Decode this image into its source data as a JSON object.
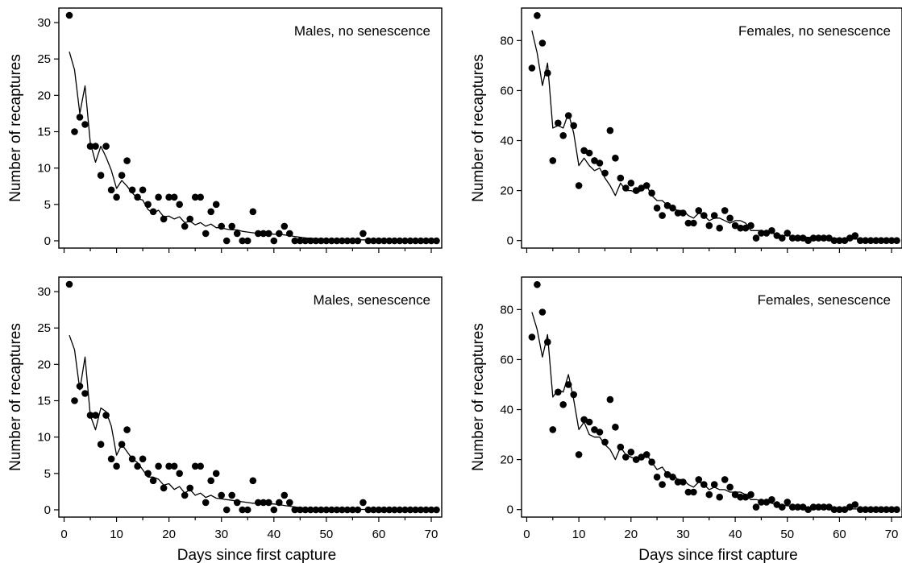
{
  "chart_data": [
    {
      "type": "scatter",
      "title": "",
      "annotation": "Males, no senescence",
      "xlabel": "",
      "ylabel": "Number of recaptures",
      "xlim": [
        -1,
        72
      ],
      "ylim": [
        -1,
        32
      ],
      "xticks": [
        0,
        10,
        20,
        30,
        40,
        50,
        60,
        70
      ],
      "yticks": [
        0,
        5,
        10,
        15,
        20,
        25,
        30
      ],
      "show_x_tick_labels": false,
      "grid": false,
      "observed": {
        "x": [
          1,
          2,
          3,
          4,
          5,
          6,
          7,
          8,
          9,
          10,
          11,
          12,
          13,
          14,
          15,
          16,
          17,
          18,
          19,
          20,
          21,
          22,
          23,
          24,
          25,
          26,
          27,
          28,
          29,
          30,
          31,
          32,
          33,
          34,
          35,
          36,
          37,
          38,
          39,
          40,
          41,
          42,
          43,
          44,
          45,
          46,
          47,
          48,
          49,
          50,
          51,
          52,
          53,
          54,
          55,
          56,
          57,
          58,
          59,
          60,
          61,
          62,
          63,
          64,
          65,
          66,
          67,
          68,
          69,
          70,
          71
        ],
        "y": [
          31,
          15,
          17,
          16,
          13,
          13,
          9,
          13,
          7,
          6,
          9,
          11,
          7,
          6,
          7,
          5,
          4,
          6,
          3,
          6,
          6,
          5,
          2,
          3,
          6,
          6,
          1,
          4,
          5,
          2,
          0,
          2,
          1,
          0,
          0,
          4,
          1,
          1,
          1,
          0,
          1,
          2,
          1,
          0,
          0,
          0,
          0,
          0,
          0,
          0,
          0,
          0,
          0,
          0,
          0,
          0,
          1,
          0,
          0,
          0,
          0,
          0,
          0,
          0,
          0,
          0,
          0,
          0,
          0,
          0,
          0
        ]
      },
      "fitted": {
        "x": [
          1,
          2,
          3,
          4,
          5,
          6,
          7,
          8,
          9,
          10,
          11,
          12,
          13,
          14,
          15,
          16,
          17,
          18,
          19,
          20,
          21,
          22,
          23,
          24,
          25,
          26,
          27,
          28,
          29,
          30,
          31,
          32,
          33,
          34,
          35,
          36,
          37,
          38,
          39,
          40,
          41,
          42,
          43,
          44,
          45,
          46,
          47,
          48,
          49,
          50,
          51,
          52,
          53,
          54,
          55,
          56,
          57,
          58,
          59,
          60,
          61,
          62,
          63,
          64,
          65,
          66,
          67,
          68,
          69,
          70,
          71
        ],
        "y": [
          26,
          23.5,
          17.5,
          21.3,
          13.5,
          10.8,
          13,
          11.5,
          9.7,
          7.2,
          8.3,
          7.5,
          6.6,
          5.8,
          5.6,
          4.3,
          3.8,
          4.2,
          3.3,
          3.4,
          3,
          3.3,
          2.5,
          2.7,
          2.2,
          2.5,
          2,
          2.3,
          1.8,
          1.8,
          1.6,
          1.5,
          1.5,
          1.3,
          1.2,
          1.1,
          1,
          1,
          1,
          0.9,
          0.9,
          0.8,
          0.7,
          0.6,
          0.5,
          0.4,
          0.35,
          0.3,
          0.28,
          0.25,
          0.22,
          0.2,
          0.18,
          0.16,
          0.15,
          0.14,
          0.13,
          0.12,
          0.11,
          0.1,
          0.1,
          0.09,
          0.08,
          0.08,
          0.07,
          0.07,
          0.06,
          0.06,
          0.05,
          0.05,
          0.05
        ]
      }
    },
    {
      "type": "scatter",
      "title": "",
      "annotation": "Females, no senescence",
      "xlabel": "",
      "ylabel": "Number of recaptures",
      "xlim": [
        -1,
        72
      ],
      "ylim": [
        -3,
        93
      ],
      "xticks": [
        0,
        10,
        20,
        30,
        40,
        50,
        60,
        70
      ],
      "yticks": [
        0,
        20,
        40,
        60,
        80
      ],
      "show_x_tick_labels": false,
      "grid": false,
      "observed": {
        "x": [
          1,
          2,
          3,
          4,
          5,
          6,
          7,
          8,
          9,
          10,
          11,
          12,
          13,
          14,
          15,
          16,
          17,
          18,
          19,
          20,
          21,
          22,
          23,
          24,
          25,
          26,
          27,
          28,
          29,
          30,
          31,
          32,
          33,
          34,
          35,
          36,
          37,
          38,
          39,
          40,
          41,
          42,
          43,
          44,
          45,
          46,
          47,
          48,
          49,
          50,
          51,
          52,
          53,
          54,
          55,
          56,
          57,
          58,
          59,
          60,
          61,
          62,
          63,
          64,
          65,
          66,
          67,
          68,
          69,
          70,
          71
        ],
        "y": [
          69,
          90,
          79,
          67,
          32,
          47,
          42,
          50,
          46,
          22,
          36,
          35,
          32,
          31,
          27,
          44,
          33,
          25,
          21,
          23,
          20,
          21,
          22,
          19,
          13,
          10,
          14,
          13,
          11,
          11,
          7,
          7,
          12,
          10,
          6,
          10,
          5,
          12,
          9,
          6,
          5,
          5,
          6,
          1,
          3,
          3,
          4,
          2,
          1,
          3,
          1,
          1,
          1,
          0,
          1,
          1,
          1,
          1,
          0,
          0,
          0,
          1,
          2,
          0,
          0,
          0,
          0,
          0,
          0,
          0,
          0
        ]
      },
      "fitted": {
        "x": [
          1,
          2,
          3,
          4,
          5,
          6,
          7,
          8,
          9,
          10,
          11,
          12,
          13,
          14,
          15,
          16,
          17,
          18,
          19,
          20,
          21,
          22,
          23,
          24,
          25,
          26,
          27,
          28,
          29,
          30,
          31,
          32,
          33,
          34,
          35,
          36,
          37,
          38,
          39,
          40,
          41,
          42,
          43,
          44,
          45,
          46,
          47,
          48,
          49,
          50,
          51,
          52,
          53,
          54,
          55,
          56,
          57,
          58,
          59,
          60,
          61,
          62,
          63,
          64,
          65,
          66,
          67,
          68,
          69,
          70,
          71
        ],
        "y": [
          84,
          75,
          62,
          71,
          45,
          46,
          45,
          51,
          43,
          30,
          33,
          30,
          28,
          29,
          25,
          22,
          18,
          23,
          20,
          20,
          19,
          20,
          22,
          18,
          16,
          16,
          14,
          13,
          12,
          12,
          10,
          9,
          11,
          10,
          8,
          9,
          9,
          8,
          7,
          8,
          8,
          7,
          4,
          4,
          4,
          3,
          3,
          2.5,
          2,
          2,
          1.8,
          1.6,
          1.4,
          1.3,
          1.2,
          1.1,
          1,
          1,
          0.9,
          0.8,
          0.7,
          0.7,
          0.6,
          0.6,
          0.5,
          0.5,
          0.5,
          0.4,
          0.4,
          0.4,
          0.3
        ]
      }
    },
    {
      "type": "scatter",
      "title": "",
      "annotation": "Males, senescence",
      "xlabel": "Days since first capture",
      "ylabel": "Number of recaptures",
      "xlim": [
        -1,
        72
      ],
      "ylim": [
        -1,
        32
      ],
      "xticks": [
        0,
        10,
        20,
        30,
        40,
        50,
        60,
        70
      ],
      "yticks": [
        0,
        5,
        10,
        15,
        20,
        25,
        30
      ],
      "show_x_tick_labels": true,
      "grid": false,
      "observed": {
        "x": [
          1,
          2,
          3,
          4,
          5,
          6,
          7,
          8,
          9,
          10,
          11,
          12,
          13,
          14,
          15,
          16,
          17,
          18,
          19,
          20,
          21,
          22,
          23,
          24,
          25,
          26,
          27,
          28,
          29,
          30,
          31,
          32,
          33,
          34,
          35,
          36,
          37,
          38,
          39,
          40,
          41,
          42,
          43,
          44,
          45,
          46,
          47,
          48,
          49,
          50,
          51,
          52,
          53,
          54,
          55,
          56,
          57,
          58,
          59,
          60,
          61,
          62,
          63,
          64,
          65,
          66,
          67,
          68,
          69,
          70,
          71
        ],
        "y": [
          31,
          15,
          17,
          16,
          13,
          13,
          9,
          13,
          7,
          6,
          9,
          11,
          7,
          6,
          7,
          5,
          4,
          6,
          3,
          6,
          6,
          5,
          2,
          3,
          6,
          6,
          1,
          4,
          5,
          2,
          0,
          2,
          1,
          0,
          0,
          4,
          1,
          1,
          1,
          0,
          1,
          2,
          1,
          0,
          0,
          0,
          0,
          0,
          0,
          0,
          0,
          0,
          0,
          0,
          0,
          0,
          1,
          0,
          0,
          0,
          0,
          0,
          0,
          0,
          0,
          0,
          0,
          0,
          0,
          0,
          0
        ]
      },
      "fitted": {
        "x": [
          1,
          2,
          3,
          4,
          5,
          6,
          7,
          8,
          9,
          10,
          11,
          12,
          13,
          14,
          15,
          16,
          17,
          18,
          19,
          20,
          21,
          22,
          23,
          24,
          25,
          26,
          27,
          28,
          29,
          30,
          31,
          32,
          33,
          34,
          35,
          36,
          37,
          38,
          39,
          40,
          41,
          42,
          43,
          44,
          45,
          46,
          47,
          48,
          49,
          50,
          51,
          52,
          53,
          54,
          55,
          56,
          57,
          58,
          59,
          60,
          61,
          62,
          63,
          64,
          65,
          66,
          67,
          68,
          69,
          70,
          71
        ],
        "y": [
          24,
          22,
          16.5,
          21,
          13,
          11,
          14,
          13.5,
          11.5,
          7.5,
          9,
          8,
          7,
          6.5,
          5.5,
          4.5,
          4.5,
          4.2,
          3.4,
          3.6,
          2.8,
          3.2,
          2.3,
          2.8,
          2,
          2.3,
          1.7,
          2,
          1.6,
          1.5,
          1.4,
          1.3,
          1.2,
          1.1,
          1,
          0.9,
          0.9,
          0.9,
          0.8,
          0.8,
          0.7,
          0.6,
          0.5,
          0.4,
          0.3,
          0.25,
          0.2,
          0.18,
          0.15,
          0.13,
          0.12,
          0.1,
          0.09,
          0.08,
          0.07,
          0.06,
          0.05,
          0.05,
          0.04,
          0.04,
          0.03,
          0.03,
          0.03,
          0.02,
          0.02,
          0.02,
          0.02,
          0.02,
          0.01,
          0.01,
          0.01
        ]
      }
    },
    {
      "type": "scatter",
      "title": "",
      "annotation": "Females, senescence",
      "xlabel": "Days since first capture",
      "ylabel": "Number of recaptures",
      "xlim": [
        -1,
        72
      ],
      "ylim": [
        -3,
        93
      ],
      "xticks": [
        0,
        10,
        20,
        30,
        40,
        50,
        60,
        70
      ],
      "yticks": [
        0,
        20,
        40,
        60,
        80
      ],
      "show_x_tick_labels": true,
      "grid": false,
      "observed": {
        "x": [
          1,
          2,
          3,
          4,
          5,
          6,
          7,
          8,
          9,
          10,
          11,
          12,
          13,
          14,
          15,
          16,
          17,
          18,
          19,
          20,
          21,
          22,
          23,
          24,
          25,
          26,
          27,
          28,
          29,
          30,
          31,
          32,
          33,
          34,
          35,
          36,
          37,
          38,
          39,
          40,
          41,
          42,
          43,
          44,
          45,
          46,
          47,
          48,
          49,
          50,
          51,
          52,
          53,
          54,
          55,
          56,
          57,
          58,
          59,
          60,
          61,
          62,
          63,
          64,
          65,
          66,
          67,
          68,
          69,
          70,
          71
        ],
        "y": [
          69,
          90,
          79,
          67,
          32,
          47,
          42,
          50,
          46,
          22,
          36,
          35,
          32,
          31,
          27,
          44,
          33,
          25,
          21,
          23,
          20,
          21,
          22,
          19,
          13,
          10,
          14,
          13,
          11,
          11,
          7,
          7,
          12,
          10,
          6,
          10,
          5,
          12,
          9,
          6,
          5,
          5,
          6,
          1,
          3,
          3,
          4,
          2,
          1,
          3,
          1,
          1,
          1,
          0,
          1,
          1,
          1,
          1,
          0,
          0,
          0,
          1,
          2,
          0,
          0,
          0,
          0,
          0,
          0,
          0,
          0
        ]
      },
      "fitted": {
        "x": [
          1,
          2,
          3,
          4,
          5,
          6,
          7,
          8,
          9,
          10,
          11,
          12,
          13,
          14,
          15,
          16,
          17,
          18,
          19,
          20,
          21,
          22,
          23,
          24,
          25,
          26,
          27,
          28,
          29,
          30,
          31,
          32,
          33,
          34,
          35,
          36,
          37,
          38,
          39,
          40,
          41,
          42,
          43,
          44,
          45,
          46,
          47,
          48,
          49,
          50,
          51,
          52,
          53,
          54,
          55,
          56,
          57,
          58,
          59,
          60,
          61,
          62,
          63,
          64,
          65,
          66,
          67,
          68,
          69,
          70,
          71
        ],
        "y": [
          79,
          72,
          61,
          70,
          45,
          48,
          47,
          54,
          44,
          32,
          35,
          30,
          29,
          29,
          26,
          24,
          20,
          25,
          22,
          21,
          20,
          20,
          22,
          19,
          16,
          17,
          14,
          14,
          12,
          12,
          10,
          9,
          11,
          10,
          8,
          9,
          8,
          8,
          7,
          7,
          7,
          6,
          4,
          4,
          3.5,
          3,
          2.5,
          2,
          1.8,
          1.5,
          1.3,
          1.1,
          1,
          0.9,
          0.8,
          0.7,
          0.6,
          0.5,
          0.5,
          0.4,
          0.35,
          0.3,
          0.25,
          0.2,
          0.2,
          0.15,
          0.15,
          0.1,
          0.1,
          0.1,
          0.1
        ]
      }
    }
  ]
}
